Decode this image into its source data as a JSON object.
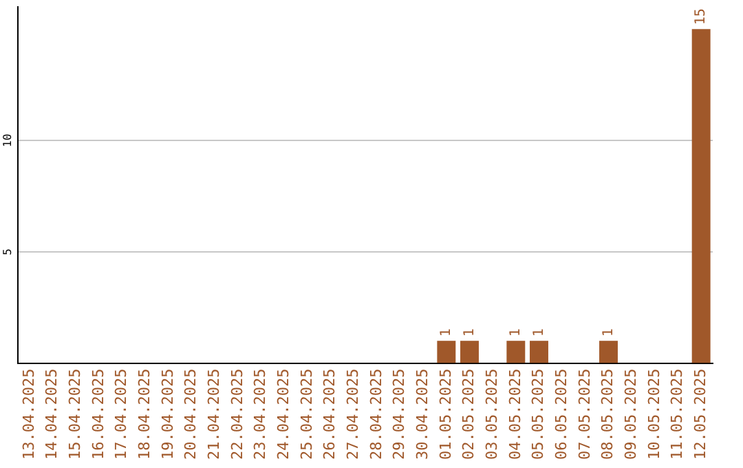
{
  "chart_data": {
    "type": "bar",
    "categories": [
      "13.04.2025",
      "14.04.2025",
      "15.04.2025",
      "16.04.2025",
      "17.04.2025",
      "18.04.2025",
      "19.04.2025",
      "20.04.2025",
      "21.04.2025",
      "22.04.2025",
      "23.04.2025",
      "24.04.2025",
      "25.04.2025",
      "26.04.2025",
      "27.04.2025",
      "28.04.2025",
      "29.04.2025",
      "30.04.2025",
      "01.05.2025",
      "02.05.2025",
      "03.05.2025",
      "04.05.2025",
      "05.05.2025",
      "06.05.2025",
      "07.05.2025",
      "08.05.2025",
      "09.05.2025",
      "10.05.2025",
      "11.05.2025",
      "12.05.2025"
    ],
    "values": [
      0,
      0,
      0,
      0,
      0,
      0,
      0,
      0,
      0,
      0,
      0,
      0,
      0,
      0,
      0,
      0,
      0,
      0,
      1,
      1,
      0,
      1,
      1,
      0,
      0,
      1,
      0,
      0,
      0,
      15
    ],
    "value_labels": [
      null,
      null,
      null,
      null,
      null,
      null,
      null,
      null,
      null,
      null,
      null,
      null,
      null,
      null,
      null,
      null,
      null,
      null,
      "1",
      "1",
      null,
      "1",
      "1",
      null,
      null,
      "1",
      null,
      null,
      null,
      "15"
    ],
    "color": "#a0582a",
    "ylim": [
      0,
      16
    ],
    "yticks": [
      5,
      10
    ],
    "grid": "y",
    "legend": false
  }
}
